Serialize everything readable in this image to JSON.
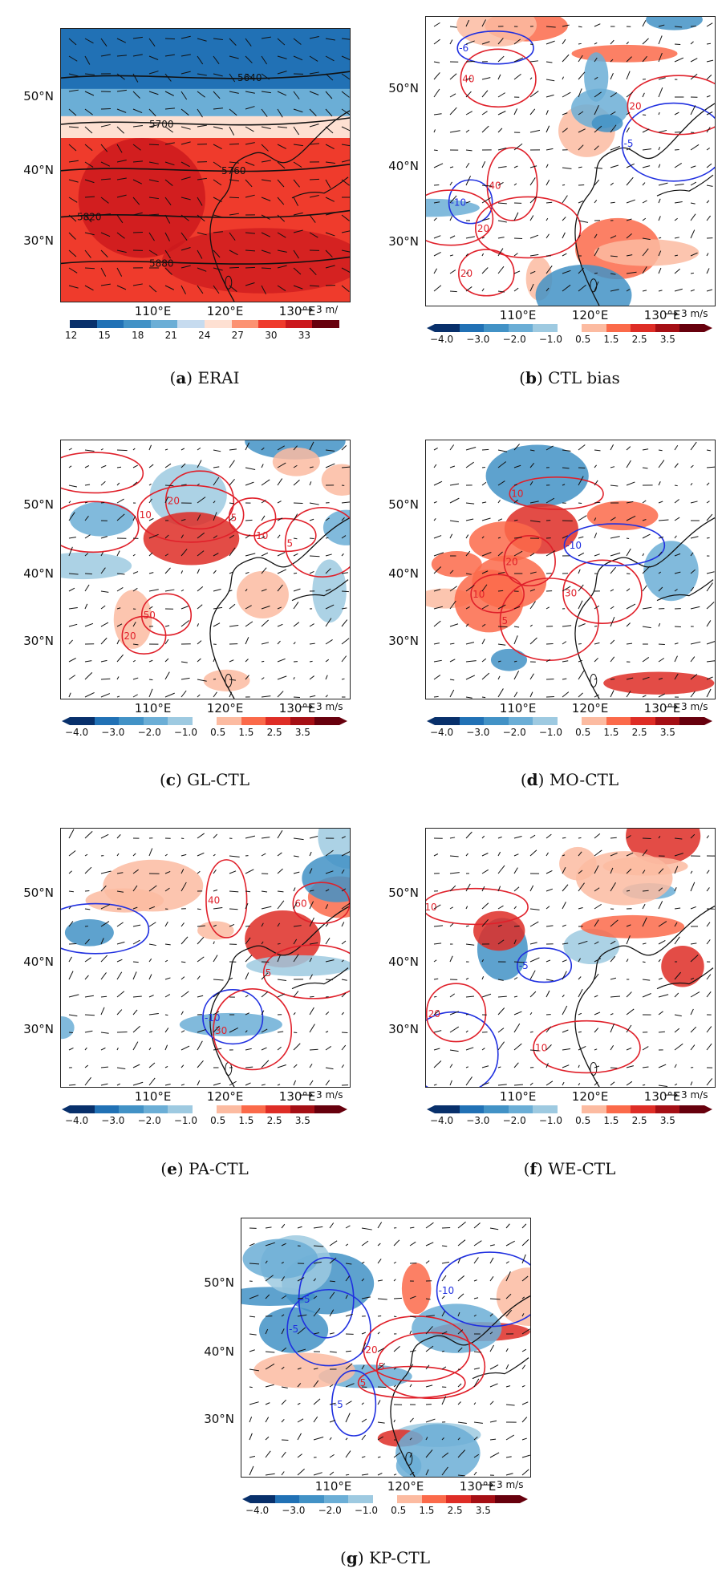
{
  "panels": [
    {
      "id": "a",
      "letter": "a",
      "name": "ERAI",
      "type": "absolute",
      "lat_labels": [
        "50°N",
        "40°N",
        "30°N"
      ],
      "lon_labels": [
        "110°E",
        "120°E",
        "130°E"
      ],
      "ref_arrow": "3 m/",
      "contour_labels": [
        "5640",
        "5700",
        "5760",
        "5820",
        "5880"
      ],
      "colorbar_ticks": [
        "12",
        "15",
        "18",
        "21",
        "24",
        "27",
        "30",
        "33"
      ]
    },
    {
      "id": "b",
      "letter": "b",
      "name": "CTL bias",
      "type": "diff",
      "lat_labels": [
        "50°N",
        "40°N",
        "30°N"
      ],
      "lon_labels": [
        "110°E",
        "120°E",
        "130°E"
      ],
      "ref_arrow": "3 m/s",
      "contour_labels": [
        "40",
        "20",
        "-10",
        "20",
        "-5",
        "40",
        "-6",
        "30",
        "20"
      ],
      "colorbar_ticks": [
        "−4.0",
        "−3.0",
        "−2.0",
        "−1.0",
        "0.5",
        "1.5",
        "2.5",
        "3.5"
      ]
    },
    {
      "id": "c",
      "letter": "c",
      "name": "GL-CTL",
      "type": "diff",
      "lat_labels": [
        "50°N",
        "40°N",
        "30°N"
      ],
      "lon_labels": [
        "110°E",
        "120°E",
        "130°E"
      ],
      "ref_arrow": "3 m/s",
      "contour_labels": [
        "20",
        "5",
        "10",
        "20",
        "10",
        "40",
        "50",
        "5",
        "5"
      ],
      "colorbar_ticks": [
        "−4.0",
        "−3.0",
        "−2.0",
        "−1.0",
        "0.5",
        "1.5",
        "2.5",
        "3.5"
      ]
    },
    {
      "id": "d",
      "letter": "d",
      "name": "MO-CTL",
      "type": "diff",
      "lat_labels": [
        "50°N",
        "40°N",
        "30°N"
      ],
      "lon_labels": [
        "110°E",
        "120°E",
        "130°E"
      ],
      "ref_arrow": "3 m/s",
      "contour_labels": [
        "5",
        "30",
        "20",
        "10",
        "10",
        "-10"
      ],
      "colorbar_ticks": [
        "−4.0",
        "−3.0",
        "−2.0",
        "−1.0",
        "0.5",
        "1.5",
        "2.5",
        "3.5"
      ]
    },
    {
      "id": "e",
      "letter": "e",
      "name": "PA-CTL",
      "type": "diff",
      "lat_labels": [
        "50°N",
        "40°N",
        "30°N"
      ],
      "lon_labels": [
        "110°E",
        "120°E",
        "130°E"
      ],
      "ref_arrow": "3 m/s",
      "contour_labels": [
        "-5",
        "5",
        "-10",
        "30",
        "40",
        "60"
      ],
      "colorbar_ticks": [
        "−4.0",
        "−3.0",
        "−2.0",
        "−1.0",
        "0.5",
        "1.5",
        "2.5",
        "3.5"
      ]
    },
    {
      "id": "f",
      "letter": "f",
      "name": "WE-CTL",
      "type": "diff",
      "lat_labels": [
        "50°N",
        "40°N",
        "30°N"
      ],
      "lon_labels": [
        "110°E",
        "120°E",
        "130°E"
      ],
      "ref_arrow": "3 m/s",
      "contour_labels": [
        "10",
        "-5",
        "20",
        "10",
        "-5"
      ],
      "colorbar_ticks": [
        "−4.0",
        "−3.0",
        "−2.0",
        "−1.0",
        "0.5",
        "1.5",
        "2.5",
        "3.5"
      ]
    },
    {
      "id": "g",
      "letter": "g",
      "name": "KP-CTL",
      "type": "diff",
      "lat_labels": [
        "50°N",
        "40°N",
        "30°N"
      ],
      "lon_labels": [
        "110°E",
        "120°E",
        "130°E"
      ],
      "ref_arrow": "3 m/s",
      "contour_labels": [
        "-5",
        "-5",
        "5",
        "5",
        "-5",
        "-10",
        "20"
      ],
      "colorbar_ticks": [
        "−4.0",
        "−3.0",
        "−2.0",
        "−1.0",
        "0.5",
        "1.5",
        "2.5",
        "3.5"
      ]
    }
  ],
  "colors": {
    "abs_scale": [
      "#08306b",
      "#2171b5",
      "#4292c6",
      "#6baed6",
      "#c6dbef",
      "#fee0d2",
      "#fc9272",
      "#ef3b2c",
      "#cb181d",
      "#67000d"
    ],
    "diff_scale": [
      "#08306b",
      "#2171b5",
      "#4292c6",
      "#6baed6",
      "#9ecae1",
      "#ffffff",
      "#fcbba1",
      "#fb6a4a",
      "#de2d26",
      "#a50f15",
      "#67000d"
    ],
    "contour_pos": "#e0202a",
    "contour_neg": "#2030e0",
    "contour_abs": "#111111"
  }
}
